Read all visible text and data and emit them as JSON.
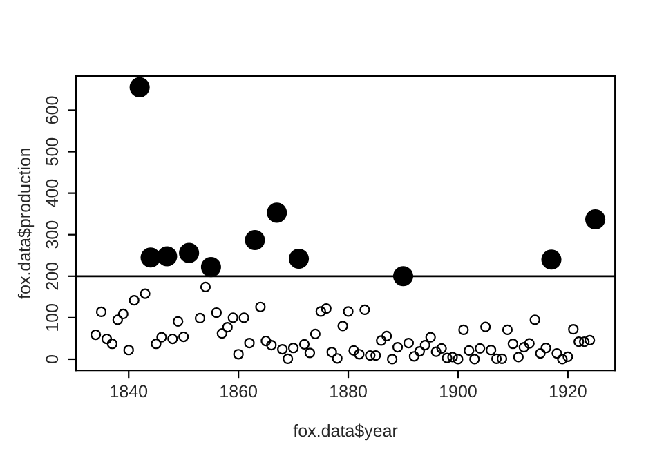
{
  "chart_data": {
    "type": "scatter",
    "xlabel": "fox.data$year",
    "ylabel": "fox.data$production",
    "xlim": [
      1830.4,
      1928.6
    ],
    "ylim": [
      -26.8,
      682
    ],
    "xticks": [
      1840,
      1860,
      1880,
      1900,
      1920
    ],
    "yticks": [
      0,
      100,
      200,
      300,
      400,
      500,
      600
    ],
    "grid": false,
    "marker": "circle",
    "ref_lines": [
      {
        "axis": "y",
        "value": 200,
        "color": "#000000",
        "line_style": "solid"
      }
    ],
    "series": [
      {
        "color": "#000000",
        "x": [
          1834,
          1835,
          1836,
          1837,
          1838,
          1839,
          1840,
          1841,
          1843,
          1845,
          1846,
          1848,
          1849,
          1850,
          1853,
          1854,
          1856,
          1857,
          1858,
          1859,
          1860,
          1861,
          1862,
          1864,
          1865,
          1866,
          1868,
          1869,
          1870,
          1872,
          1873,
          1874,
          1875,
          1876,
          1877,
          1878,
          1879,
          1880,
          1881,
          1882,
          1883,
          1884,
          1885,
          1886,
          1887,
          1888,
          1889,
          1891,
          1892,
          1893,
          1894,
          1895,
          1896,
          1897,
          1898,
          1899,
          1900,
          1901,
          1902,
          1903,
          1904,
          1905,
          1906,
          1907,
          1908,
          1909,
          1910,
          1911,
          1912,
          1913,
          1914,
          1915,
          1916,
          1918,
          1919,
          1920,
          1921,
          1922,
          1923,
          1924
        ],
        "values": [
          59,
          114,
          49,
          37,
          95,
          109,
          22,
          142,
          158,
          37,
          53,
          49,
          91,
          54,
          99,
          174,
          112,
          62,
          77,
          100,
          12,
          100,
          39,
          126,
          44,
          34,
          24,
          1,
          27,
          36,
          15,
          61,
          115,
          122,
          17,
          2,
          80,
          115,
          21,
          12,
          119,
          9,
          9,
          45,
          56,
          0,
          29,
          39,
          7,
          19,
          34,
          53,
          18,
          26,
          3,
          5,
          0,
          71,
          21,
          0,
          26,
          78,
          22,
          1,
          1,
          71,
          37,
          5,
          29,
          38,
          95,
          14,
          27,
          14,
          0,
          6,
          72,
          42,
          42,
          46
        ]
      },
      {
        "color": "#000000",
        "x": [
          1842,
          1844,
          1847,
          1851,
          1855,
          1863,
          1867,
          1871,
          1890,
          1917,
          1925
        ],
        "values": [
          655,
          245,
          248,
          256,
          222,
          287,
          353,
          242,
          200,
          240,
          337
        ]
      }
    ]
  }
}
